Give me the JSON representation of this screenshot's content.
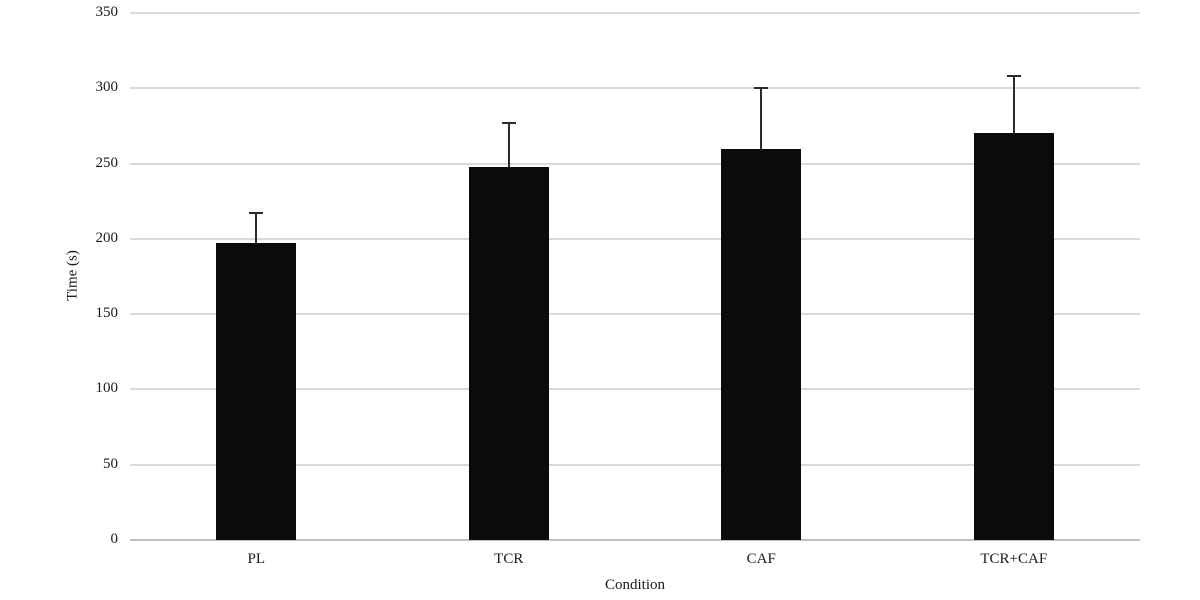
{
  "chart_data": {
    "type": "bar",
    "title": "",
    "xlabel": "Condition",
    "ylabel": "Time (s)",
    "categories": [
      "PL",
      "TCR",
      "CAF",
      "TCR+CAF"
    ],
    "values": [
      197,
      248,
      260,
      270
    ],
    "error_upper": [
      20,
      29,
      40,
      38
    ],
    "ylim": [
      0,
      350
    ],
    "ytick_step": 50,
    "yticks": [
      0,
      50,
      100,
      150,
      200,
      250,
      300,
      350
    ],
    "grid": "horizontal",
    "legend": "none",
    "bar_color": "#0b0b0b",
    "gridline_color": "#d9d9d9",
    "axis_line_color": "#bfbfbf",
    "text_color": "#1a1a1a"
  }
}
